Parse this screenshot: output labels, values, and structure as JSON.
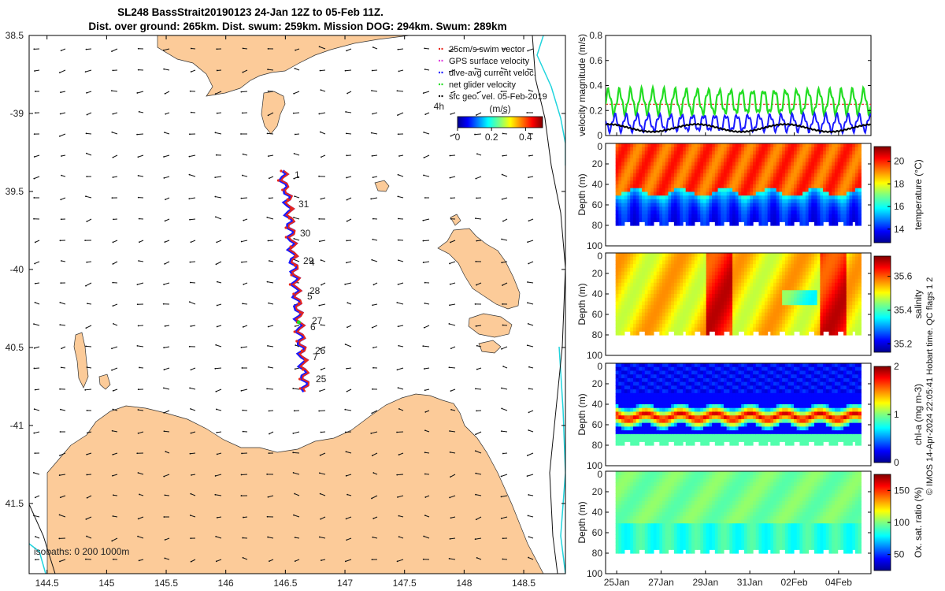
{
  "figure": {
    "title_line1": "SL248 BassStrait20190123 24-Jan 12Z to 05-Feb 11Z.",
    "title_line2": "Dist. over ground: 265km. Dist. swum: 259km. Mission DOG: 294km. Swum: 289km",
    "copyright": "© IMOS 14-Apr-2024 22:05:41 Hobart time. QC flags 1  2",
    "colors": {
      "land": "#fccb99",
      "isobath_200": "#000000",
      "isobath_1000": "#21d4dd",
      "track": "#e8261c",
      "track_marks": "#1a1aff"
    }
  },
  "map": {
    "isobaths_label": "isobaths: 0   200  1000m",
    "lon_ticks": [
      "144.5",
      "145",
      "145.5",
      "146",
      "146.5",
      "147",
      "147.5",
      "148",
      "148.5"
    ],
    "lon_values": [
      144.5,
      145,
      145.5,
      146,
      146.5,
      147,
      147.5,
      148,
      148.5
    ],
    "lat_ticks": [
      "38.5",
      "-39",
      "39.5",
      "-40",
      "40.5",
      "-41",
      "41.5"
    ],
    "lat_values": [
      -38.5,
      -39,
      -39.5,
      -40,
      -40.5,
      -41,
      -41.5
    ],
    "lon_range": [
      144.35,
      148.85
    ],
    "lat_range": [
      -41.95,
      -38.5
    ],
    "legend": [
      {
        "label": "25cm/s swim vector",
        "color": "#e8261c"
      },
      {
        "label": "GPS surface velocity",
        "color": "#e040e0"
      },
      {
        "label": "dive-avg current veloc.",
        "color": "#1a1aff"
      },
      {
        "label": "net glider velocity",
        "color": "#22dd22"
      },
      {
        "label": "sfc geo. vel. 05-Feb-2019",
        "color": "#000000"
      }
    ],
    "colorbar": {
      "label": "(m/s)",
      "scale_label": "4h",
      "ticks": [
        "0",
        "0.2",
        "0.4"
      ],
      "tick_values": [
        0,
        0.2,
        0.4
      ],
      "range": [
        0,
        0.5
      ]
    },
    "day_labels": [
      "1",
      "31",
      "30",
      "29",
      "4",
      "28",
      "5",
      "27",
      "6",
      "26",
      "7",
      "25"
    ],
    "track_start": "146.5E 39.4S",
    "track_end": "146.7E 40.8S"
  },
  "chart_data": [
    {
      "type": "line",
      "title": "",
      "xlabel": "",
      "ylabel": "velocity magnitude (m/s)",
      "ylim": [
        0,
        0.8
      ],
      "yticks": [
        "0",
        "0.2",
        "0.4",
        "0.6",
        "0.8"
      ],
      "ytick_values": [
        0,
        0.2,
        0.4,
        0.6,
        0.8
      ],
      "xlim_days": [
        24.5,
        36.46
      ],
      "series": [
        {
          "name": "net glider velocity",
          "color": "#22dd22",
          "mean": 0.27,
          "amplitude": 0.09
        },
        {
          "name": "dive-avg current veloc.",
          "color": "#1a1aff",
          "mean": 0.1,
          "amplitude": 0.06
        },
        {
          "name": "sfc geo. vel.",
          "color": "#000000",
          "mean": 0.06,
          "amplitude": 0.03
        },
        {
          "name": "25cm/s swim reference",
          "color": "#e8261c",
          "value": 0.25
        }
      ]
    },
    {
      "type": "heatmap",
      "variable": "temperature",
      "ylabel": "Depth (m)",
      "cbar_label": "temperature (°C)",
      "depth_range": [
        0,
        100
      ],
      "yticks": [
        "20",
        "40",
        "60",
        "80",
        "100"
      ],
      "ytick_values": [
        20,
        40,
        60,
        80,
        100
      ],
      "cbar_ticks": [
        "14",
        "16",
        "18",
        "20"
      ],
      "cbar_values": [
        14,
        16,
        18,
        20
      ],
      "clim": [
        12.8,
        21.3
      ],
      "mixed_layer_value": 19.6,
      "bottom_value": 13.8,
      "thermocline_depth_m": 48
    },
    {
      "type": "heatmap",
      "variable": "salinity",
      "ylabel": "Depth (m)",
      "cbar_label": "salinity",
      "depth_range": [
        0,
        100
      ],
      "yticks": [
        "20",
        "40",
        "60",
        "80",
        "100"
      ],
      "ytick_values": [
        20,
        40,
        60,
        80,
        100
      ],
      "cbar_ticks": [
        "35.2",
        "35.4",
        "35.6"
      ],
      "cbar_values": [
        35.2,
        35.4,
        35.6
      ],
      "clim": [
        35.15,
        35.72
      ],
      "typical_value": 35.52
    },
    {
      "type": "heatmap",
      "variable": "chl-a",
      "ylabel": "Depth (m)",
      "cbar_label": "chl-a (mg m-3)",
      "depth_range": [
        0,
        100
      ],
      "yticks": [
        "20",
        "40",
        "60",
        "80",
        "100"
      ],
      "ytick_values": [
        20,
        40,
        60,
        80,
        100
      ],
      "cbar_ticks": [
        "0",
        "1",
        "2"
      ],
      "cbar_values": [
        0,
        1,
        2
      ],
      "clim": [
        0,
        2
      ],
      "surface_value": 0.25,
      "max_layer_depth_m": 52
    },
    {
      "type": "heatmap",
      "variable": "oxygen",
      "ylabel": "Depth (m)",
      "cbar_label": "Ox. sat. ratio (%)",
      "depth_range": [
        0,
        100
      ],
      "yticks": [
        "20",
        "40",
        "60",
        "80",
        "100"
      ],
      "ytick_values": [
        20,
        40,
        60,
        80,
        100
      ],
      "cbar_ticks": [
        "50",
        "100",
        "150"
      ],
      "cbar_values": [
        50,
        100,
        150
      ],
      "clim": [
        25,
        175
      ],
      "typical_value": 98
    }
  ],
  "x_axis": {
    "labels": [
      "25Jan",
      "27Jan",
      "29Jan",
      "31Jan",
      "02Feb",
      "04Feb"
    ],
    "day_values": [
      25,
      27,
      29,
      31,
      33,
      35
    ],
    "range_days": [
      24.5,
      36.46
    ]
  }
}
